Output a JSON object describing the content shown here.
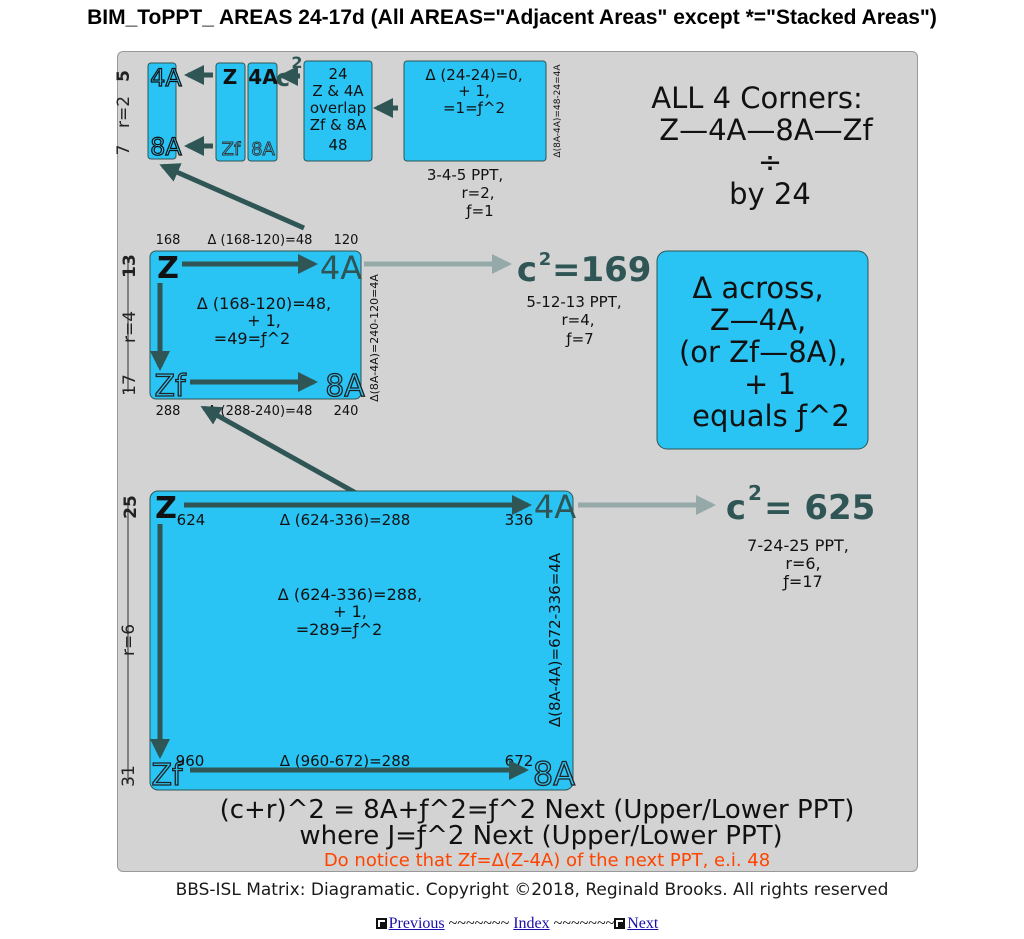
{
  "title": "BIM_ToPPT_ AREAS 24-17d (All AREAS=\"Adjacent Areas\" except *=\"Stacked Areas\")",
  "colors": {
    "cyan": "#29c3f4",
    "gray_panel": "#d3d3d3",
    "dark_arrow": "#2f5555",
    "light_arrow": "#95aaa8",
    "note_orange": "#ff4400"
  },
  "corners_note": {
    "line1": "ALL 4 Corners:",
    "line2": "Z—4A—8A—Zf",
    "line3": "÷",
    "line4": "by 24"
  },
  "delta_box": {
    "line1": "Δ across,",
    "line2": "Z—4A,",
    "line3": "(or Zf—8A),",
    "line4": "+ 1",
    "line5": "equals ƒ^2"
  },
  "small": {
    "left_top": "5",
    "left_bottom": "7",
    "r_label": "r=2",
    "z": "Z",
    "a4": "4A",
    "a8": "8A",
    "zf": "Zf",
    "c2": "c",
    "sup2": "2",
    "overlap": {
      "l1": "24",
      "l2": "Z & 4A",
      "l3": "overlap",
      "l4": "Zf & 8A",
      "l5": "48"
    },
    "delta": {
      "l1": "Δ (24-24)=0,",
      "l2": "+ 1,",
      "l3": "=1=ƒ^2"
    },
    "side": "Δ(8A-4A)=48-24=4A",
    "ppt": {
      "l1": "3-4-5 PPT,",
      "l2": "r=2,",
      "l3": "ƒ=1"
    }
  },
  "medium": {
    "left_top": "13",
    "left_bottom": "17",
    "r_label": "r=4",
    "z": "Z",
    "a4": "4A",
    "a8": "8A",
    "zf": "Zf",
    "top_left": "168",
    "top_delta": "Δ (168-120)=48",
    "top_right": "120",
    "inner": {
      "l1": "Δ (168-120)=48,",
      "l2": "+ 1,",
      "l3": "=49=ƒ^2"
    },
    "bottom_left": "288",
    "bottom_delta": "Δ (288-240)=48",
    "bottom_right": "240",
    "side": "Δ(8A-4A)=240-120=4A",
    "c2_base": "c",
    "c2_sup": "2",
    "c2_value": "=169",
    "ppt": {
      "l1": "5-12-13 PPT,",
      "l2": "r=4,",
      "l3": "ƒ=7"
    }
  },
  "large": {
    "left_top": "25",
    "left_bottom": "31",
    "r_label": "r=6",
    "z": "Z",
    "a4": "4A",
    "a8": "8A",
    "zf": "Zf",
    "top_left": "624",
    "top_delta": "Δ (624-336)=288",
    "top_right": "336",
    "inner": {
      "l1": "Δ (624-336)=288,",
      "l2": "+ 1,",
      "l3": "=289=ƒ^2"
    },
    "bottom_left": "960",
    "bottom_delta": "Δ (960-672)=288",
    "bottom_right": "672",
    "side": "Δ(8A-4A)=672-336=4A",
    "c2_base": "c",
    "c2_sup": "2",
    "c2_value": "= 625",
    "ppt": {
      "l1": "7-24-25 PPT,",
      "l2": "r=6,",
      "l3": "ƒ=17"
    }
  },
  "formula": {
    "line1": "(c+r)^2 = 8A+ƒ^2=ƒ^2 Next (Upper/Lower PPT)",
    "line2": "where J=ƒ^2 Next (Upper/Lower PPT)"
  },
  "note": "Do notice that Zf=Δ(Z-4A) of the next PPT, e.i. 48",
  "copyright": "BBS-ISL Matrix: Diagramatic. Copyright ©2018, Reginald Brooks. All rights reserved",
  "nav": {
    "previous": "Previous",
    "sep1": " ~~~~~~~ ",
    "index": "Index",
    "sep2": " ~~~~~~~",
    "next": "Next"
  }
}
